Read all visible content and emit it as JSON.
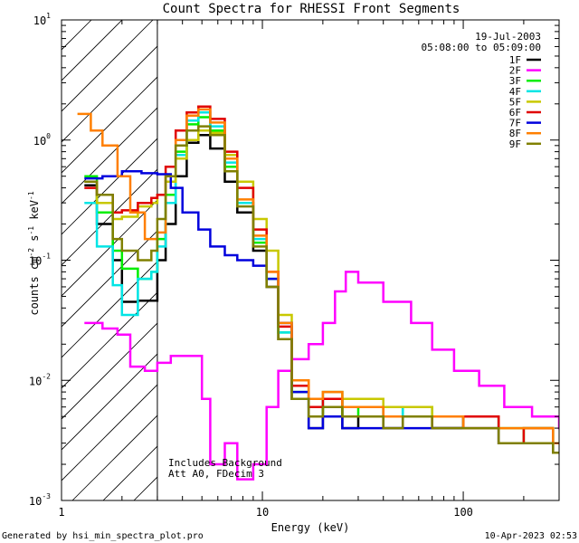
{
  "chart_data": {
    "type": "line",
    "title": "Count Spectra for RHESSI Front Segments",
    "xlabel": "Energy (keV)",
    "ylabel": "counts cm",
    "ylabel_sup1": "-2",
    "ylabel_mid": " s",
    "ylabel_sup2": "-1",
    "ylabel_end": " keV",
    "ylabel_sup3": "-1",
    "xscale": "log",
    "yscale": "log",
    "xlim": [
      1,
      300
    ],
    "ylim": [
      0.001,
      10
    ],
    "x_ticks": [
      {
        "value": 1,
        "label": "1"
      },
      {
        "value": 10,
        "label": "10"
      },
      {
        "value": 100,
        "label": "100"
      }
    ],
    "y_ticks": [
      {
        "exp": 1,
        "base": "10",
        "sup": "1"
      },
      {
        "exp": 0,
        "base": "10",
        "sup": "0"
      },
      {
        "exp": -1,
        "base": "10",
        "sup": "-1"
      },
      {
        "exp": -2,
        "base": "10",
        "sup": "-2"
      },
      {
        "exp": -3,
        "base": "10",
        "sup": "-3"
      }
    ],
    "hatched_region": {
      "x_from": 1,
      "x_to": 3,
      "meaning": "attenuated / excluded low-energy band"
    },
    "date": "19-Jul-2003",
    "time_range": "05:08:00 to 05:09:00",
    "annotations": [
      "Includes Background",
      "Att A0, FDecim 3"
    ],
    "footer_left": "Generated by hsi_min_spectra_plot.pro",
    "footer_right": "10-Apr-2023 02:53",
    "series": [
      {
        "name": "1F",
        "color": "#000000",
        "points": [
          [
            1.3,
            0.42
          ],
          [
            1.5,
            0.2
          ],
          [
            1.8,
            0.1
          ],
          [
            2.0,
            0.045
          ],
          [
            2.4,
            0.046
          ],
          [
            2.8,
            0.046
          ],
          [
            3.0,
            0.1
          ],
          [
            3.3,
            0.2
          ],
          [
            3.7,
            0.5
          ],
          [
            4.2,
            0.95
          ],
          [
            4.8,
            1.1
          ],
          [
            5.5,
            0.85
          ],
          [
            6.5,
            0.45
          ],
          [
            7.5,
            0.25
          ],
          [
            9,
            0.12
          ],
          [
            10.5,
            0.06
          ],
          [
            12,
            0.022
          ],
          [
            14,
            0.007
          ],
          [
            17,
            0.004
          ],
          [
            20,
            0.006
          ],
          [
            25,
            0.004
          ],
          [
            30,
            0.005
          ],
          [
            40,
            0.004
          ],
          [
            50,
            0.005
          ],
          [
            70,
            0.004
          ],
          [
            100,
            0.005
          ],
          [
            150,
            0.003
          ],
          [
            200,
            0.003
          ],
          [
            280,
            0.0025
          ]
        ]
      },
      {
        "name": "2F",
        "color": "#ff00ff",
        "points": [
          [
            1.3,
            0.03
          ],
          [
            1.6,
            0.027
          ],
          [
            1.9,
            0.024
          ],
          [
            2.2,
            0.013
          ],
          [
            2.6,
            0.012
          ],
          [
            3.0,
            0.014
          ],
          [
            3.5,
            0.016
          ],
          [
            4.2,
            0.016
          ],
          [
            5.0,
            0.007
          ],
          [
            5.5,
            0.002
          ],
          [
            6.5,
            0.003
          ],
          [
            7.5,
            0.0015
          ],
          [
            9,
            0.002
          ],
          [
            10.5,
            0.006
          ],
          [
            12,
            0.012
          ],
          [
            14,
            0.015
          ],
          [
            17,
            0.02
          ],
          [
            20,
            0.03
          ],
          [
            23,
            0.055
          ],
          [
            26,
            0.08
          ],
          [
            30,
            0.065
          ],
          [
            40,
            0.045
          ],
          [
            55,
            0.03
          ],
          [
            70,
            0.018
          ],
          [
            90,
            0.012
          ],
          [
            120,
            0.009
          ],
          [
            160,
            0.006
          ],
          [
            220,
            0.005
          ],
          [
            300,
            0.004
          ]
        ]
      },
      {
        "name": "3F",
        "color": "#00ee00",
        "points": [
          [
            1.3,
            0.5
          ],
          [
            1.5,
            0.25
          ],
          [
            1.8,
            0.12
          ],
          [
            2.0,
            0.085
          ],
          [
            2.4,
            0.07
          ],
          [
            2.8,
            0.08
          ],
          [
            3.0,
            0.15
          ],
          [
            3.3,
            0.35
          ],
          [
            3.7,
            0.8
          ],
          [
            4.2,
            1.35
          ],
          [
            4.8,
            1.55
          ],
          [
            5.5,
            1.2
          ],
          [
            6.5,
            0.6
          ],
          [
            7.5,
            0.3
          ],
          [
            9,
            0.14
          ],
          [
            10.5,
            0.07
          ],
          [
            12,
            0.025
          ],
          [
            14,
            0.008
          ],
          [
            17,
            0.005
          ],
          [
            20,
            0.007
          ],
          [
            25,
            0.005
          ],
          [
            30,
            0.006
          ],
          [
            40,
            0.005
          ],
          [
            50,
            0.006
          ],
          [
            70,
            0.004
          ],
          [
            100,
            0.005
          ],
          [
            150,
            0.003
          ],
          [
            200,
            0.004
          ],
          [
            280,
            0.003
          ]
        ]
      },
      {
        "name": "4F",
        "color": "#00e5e5",
        "points": [
          [
            1.3,
            0.3
          ],
          [
            1.5,
            0.13
          ],
          [
            1.8,
            0.062
          ],
          [
            2.0,
            0.035
          ],
          [
            2.4,
            0.07
          ],
          [
            2.8,
            0.08
          ],
          [
            3.0,
            0.13
          ],
          [
            3.3,
            0.3
          ],
          [
            3.7,
            0.75
          ],
          [
            4.2,
            1.45
          ],
          [
            4.8,
            1.7
          ],
          [
            5.5,
            1.3
          ],
          [
            6.5,
            0.65
          ],
          [
            7.5,
            0.3
          ],
          [
            9,
            0.15
          ],
          [
            10.5,
            0.07
          ],
          [
            12,
            0.025
          ],
          [
            14,
            0.009
          ],
          [
            17,
            0.006
          ],
          [
            20,
            0.008
          ],
          [
            25,
            0.006
          ],
          [
            30,
            0.006
          ],
          [
            40,
            0.005
          ],
          [
            50,
            0.006
          ],
          [
            70,
            0.005
          ],
          [
            100,
            0.005
          ],
          [
            150,
            0.004
          ],
          [
            200,
            0.004
          ],
          [
            280,
            0.003
          ]
        ]
      },
      {
        "name": "5F",
        "color": "#c8c800",
        "points": [
          [
            1.3,
            0.45
          ],
          [
            1.5,
            0.3
          ],
          [
            1.8,
            0.22
          ],
          [
            2.0,
            0.23
          ],
          [
            2.4,
            0.28
          ],
          [
            2.8,
            0.3
          ],
          [
            3.0,
            0.35
          ],
          [
            3.3,
            0.45
          ],
          [
            3.7,
            0.7
          ],
          [
            4.2,
            1.0
          ],
          [
            4.8,
            1.2
          ],
          [
            5.5,
            1.15
          ],
          [
            6.5,
            0.75
          ],
          [
            7.5,
            0.45
          ],
          [
            9,
            0.22
          ],
          [
            10.5,
            0.12
          ],
          [
            12,
            0.035
          ],
          [
            14,
            0.01
          ],
          [
            17,
            0.007
          ],
          [
            20,
            0.008
          ],
          [
            25,
            0.007
          ],
          [
            30,
            0.007
          ],
          [
            40,
            0.006
          ],
          [
            50,
            0.006
          ],
          [
            70,
            0.005
          ],
          [
            100,
            0.005
          ],
          [
            150,
            0.004
          ],
          [
            200,
            0.004
          ],
          [
            280,
            0.003
          ]
        ]
      },
      {
        "name": "6F",
        "color": "#e00000",
        "points": [
          [
            1.3,
            0.4
          ],
          [
            1.5,
            0.35
          ],
          [
            1.8,
            0.25
          ],
          [
            2.0,
            0.26
          ],
          [
            2.4,
            0.3
          ],
          [
            2.8,
            0.33
          ],
          [
            3.0,
            0.35
          ],
          [
            3.3,
            0.6
          ],
          [
            3.7,
            1.2
          ],
          [
            4.2,
            1.7
          ],
          [
            4.8,
            1.9
          ],
          [
            5.5,
            1.5
          ],
          [
            6.5,
            0.8
          ],
          [
            7.5,
            0.4
          ],
          [
            9,
            0.18
          ],
          [
            10.5,
            0.08
          ],
          [
            12,
            0.028
          ],
          [
            14,
            0.009
          ],
          [
            17,
            0.006
          ],
          [
            20,
            0.007
          ],
          [
            25,
            0.006
          ],
          [
            30,
            0.006
          ],
          [
            40,
            0.005
          ],
          [
            50,
            0.005
          ],
          [
            70,
            0.004
          ],
          [
            100,
            0.005
          ],
          [
            150,
            0.003
          ],
          [
            200,
            0.004
          ],
          [
            280,
            0.003
          ]
        ]
      },
      {
        "name": "7F",
        "color": "#0000dd",
        "points": [
          [
            1.3,
            0.48
          ],
          [
            1.6,
            0.5
          ],
          [
            2.0,
            0.55
          ],
          [
            2.5,
            0.53
          ],
          [
            3.0,
            0.52
          ],
          [
            3.5,
            0.4
          ],
          [
            4.0,
            0.25
          ],
          [
            4.8,
            0.18
          ],
          [
            5.5,
            0.13
          ],
          [
            6.5,
            0.11
          ],
          [
            7.5,
            0.1
          ],
          [
            9,
            0.09
          ],
          [
            10.5,
            0.07
          ],
          [
            12,
            0.03
          ],
          [
            14,
            0.008
          ],
          [
            17,
            0.004
          ],
          [
            20,
            0.005
          ],
          [
            25,
            0.004
          ],
          [
            30,
            0.004
          ],
          [
            40,
            0.004
          ],
          [
            50,
            0.004
          ],
          [
            70,
            0.004
          ],
          [
            100,
            0.004
          ],
          [
            150,
            0.003
          ],
          [
            200,
            0.003
          ],
          [
            280,
            0.003
          ]
        ]
      },
      {
        "name": "8F",
        "color": "#ff7f00",
        "points": [
          [
            1.2,
            1.65
          ],
          [
            1.4,
            1.2
          ],
          [
            1.6,
            0.9
          ],
          [
            1.9,
            0.5
          ],
          [
            2.2,
            0.25
          ],
          [
            2.6,
            0.15
          ],
          [
            3.0,
            0.17
          ],
          [
            3.3,
            0.5
          ],
          [
            3.7,
            1.0
          ],
          [
            4.2,
            1.6
          ],
          [
            4.8,
            1.8
          ],
          [
            5.5,
            1.4
          ],
          [
            6.5,
            0.7
          ],
          [
            7.5,
            0.32
          ],
          [
            9,
            0.16
          ],
          [
            10.5,
            0.08
          ],
          [
            12,
            0.03
          ],
          [
            14,
            0.01
          ],
          [
            17,
            0.007
          ],
          [
            20,
            0.008
          ],
          [
            25,
            0.006
          ],
          [
            30,
            0.006
          ],
          [
            40,
            0.005
          ],
          [
            50,
            0.005
          ],
          [
            70,
            0.005
          ],
          [
            100,
            0.004
          ],
          [
            150,
            0.004
          ],
          [
            200,
            0.004
          ],
          [
            280,
            0.003
          ]
        ]
      },
      {
        "name": "9F",
        "color": "#808000",
        "points": [
          [
            1.3,
            0.45
          ],
          [
            1.5,
            0.35
          ],
          [
            1.8,
            0.15
          ],
          [
            2.0,
            0.12
          ],
          [
            2.4,
            0.1
          ],
          [
            2.8,
            0.12
          ],
          [
            3.0,
            0.22
          ],
          [
            3.3,
            0.5
          ],
          [
            3.7,
            0.9
          ],
          [
            4.2,
            1.2
          ],
          [
            4.8,
            1.3
          ],
          [
            5.5,
            1.1
          ],
          [
            6.5,
            0.55
          ],
          [
            7.5,
            0.28
          ],
          [
            9,
            0.13
          ],
          [
            10.5,
            0.06
          ],
          [
            12,
            0.022
          ],
          [
            14,
            0.007
          ],
          [
            17,
            0.005
          ],
          [
            20,
            0.006
          ],
          [
            25,
            0.005
          ],
          [
            30,
            0.005
          ],
          [
            40,
            0.004
          ],
          [
            50,
            0.005
          ],
          [
            70,
            0.004
          ],
          [
            100,
            0.004
          ],
          [
            150,
            0.003
          ],
          [
            200,
            0.003
          ],
          [
            280,
            0.0025
          ]
        ]
      }
    ]
  }
}
